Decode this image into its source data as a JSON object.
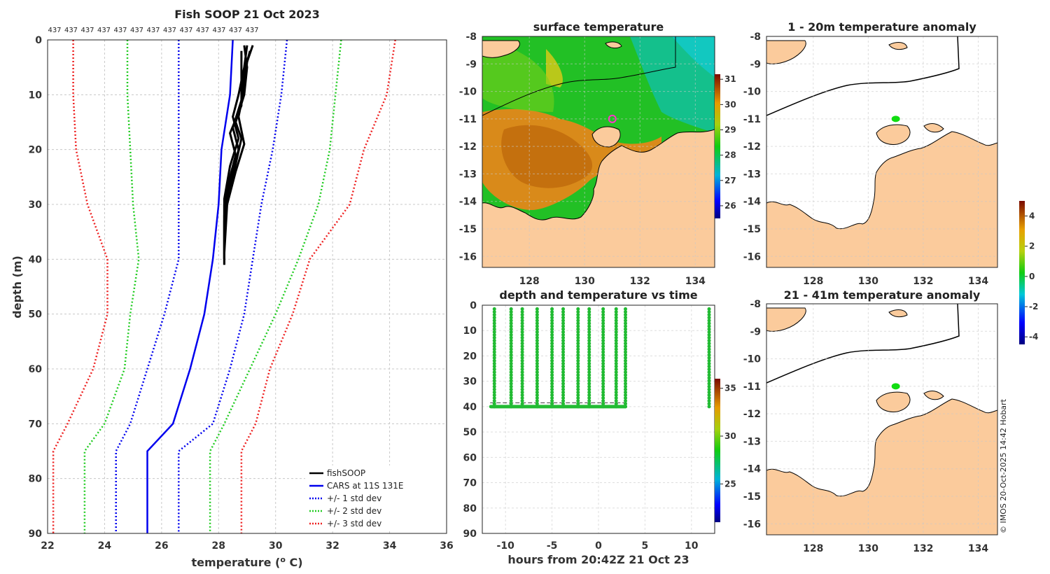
{
  "chart_data": [
    {
      "type": "line",
      "title": "Fish SOOP 21 Oct 2023",
      "xlabel": "temperature (",
      "xlabel_sup": "o",
      "xlabel_unit": " C)",
      "ylabel": "depth (m)",
      "xlim": [
        22,
        36
      ],
      "ylim": [
        0,
        90
      ],
      "y_reversed": true,
      "xticks": [
        22,
        24,
        26,
        28,
        30,
        32,
        34,
        36
      ],
      "yticks": [
        0,
        10,
        20,
        30,
        40,
        50,
        60,
        70,
        80,
        90
      ],
      "count_labels": [
        "437",
        "437",
        "437",
        "437",
        "437",
        "437",
        "437",
        "437",
        "437",
        "437",
        "437",
        "437",
        "437"
      ],
      "legend_position": "bottom-right",
      "series": [
        {
          "name": "fishSOOP",
          "color": "#000000",
          "style": "solid",
          "profiles": [
            [
              [
                28.9,
                1
              ],
              [
                29.0,
                5
              ],
              [
                28.9,
                10
              ],
              [
                28.6,
                15
              ],
              [
                28.8,
                18
              ],
              [
                28.5,
                25
              ],
              [
                28.2,
                30
              ],
              [
                28.2,
                41
              ]
            ],
            [
              [
                29.1,
                2
              ],
              [
                28.9,
                6
              ],
              [
                28.8,
                11
              ],
              [
                28.5,
                16
              ],
              [
                28.7,
                20
              ],
              [
                28.4,
                26
              ],
              [
                28.2,
                32
              ],
              [
                28.2,
                40
              ]
            ],
            [
              [
                29.2,
                1
              ],
              [
                29.0,
                4
              ],
              [
                28.9,
                9
              ],
              [
                28.7,
                14
              ],
              [
                28.9,
                19
              ],
              [
                28.6,
                24
              ],
              [
                28.3,
                30
              ],
              [
                28.2,
                39
              ]
            ],
            [
              [
                28.8,
                2
              ],
              [
                28.8,
                7
              ],
              [
                28.8,
                12
              ],
              [
                28.4,
                17
              ],
              [
                28.6,
                21
              ],
              [
                28.3,
                27
              ],
              [
                28.2,
                33
              ],
              [
                28.2,
                40
              ]
            ],
            [
              [
                29.0,
                1
              ],
              [
                28.9,
                5
              ],
              [
                28.7,
                10
              ],
              [
                28.5,
                14
              ],
              [
                28.7,
                18
              ],
              [
                28.4,
                23
              ],
              [
                28.2,
                29
              ],
              [
                28.2,
                41
              ]
            ]
          ]
        },
        {
          "name": "CARS at 11S 131E",
          "color": "#0000ee",
          "style": "solid",
          "x": [
            28.5,
            28.4,
            28.1,
            28.0,
            27.8,
            27.5,
            27.0,
            26.4,
            25.5,
            25.5
          ],
          "y": [
            0,
            10,
            20,
            30,
            40,
            50,
            60,
            70,
            75,
            90
          ]
        },
        {
          "name": "+/- 1 std dev",
          "color": "#0000ee",
          "style": "dotted",
          "pair": true,
          "lower": {
            "x": [
              26.6,
              26.6,
              26.6,
              26.6,
              26.6,
              26.1,
              25.5,
              24.9,
              24.4,
              24.4
            ],
            "y": [
              0,
              10,
              20,
              30,
              40,
              50,
              60,
              70,
              75,
              90
            ]
          },
          "upper": {
            "x": [
              30.4,
              30.2,
              29.9,
              29.5,
              29.2,
              28.9,
              28.4,
              27.8,
              26.6,
              26.6
            ],
            "y": [
              0,
              10,
              20,
              30,
              40,
              50,
              60,
              70,
              75,
              90
            ]
          }
        },
        {
          "name": "+/- 2 std dev",
          "color": "#22cc22",
          "style": "dotted",
          "pair": true,
          "lower": {
            "x": [
              24.8,
              24.8,
              24.9,
              25.0,
              25.2,
              24.9,
              24.7,
              24.0,
              23.3,
              23.3
            ],
            "y": [
              0,
              10,
              20,
              30,
              40,
              50,
              60,
              70,
              75,
              90
            ]
          },
          "upper": {
            "x": [
              32.3,
              32.1,
              31.9,
              31.5,
              30.8,
              30.0,
              29.1,
              28.2,
              27.7,
              27.7
            ],
            "y": [
              0,
              10,
              20,
              30,
              40,
              50,
              60,
              70,
              75,
              90
            ]
          }
        },
        {
          "name": "+/- 3 std dev",
          "color": "#ee2222",
          "style": "dotted",
          "pair": true,
          "lower": {
            "x": [
              22.9,
              22.9,
              23.0,
              23.4,
              24.1,
              24.1,
              23.6,
              22.7,
              22.2,
              22.2
            ],
            "y": [
              0,
              10,
              20,
              30,
              40,
              50,
              60,
              70,
              75,
              90
            ]
          },
          "upper": {
            "x": [
              34.2,
              33.9,
              33.1,
              32.6,
              31.2,
              30.6,
              29.8,
              29.3,
              28.8,
              28.8
            ],
            "y": [
              0,
              10,
              20,
              30,
              40,
              50,
              60,
              70,
              75,
              90
            ]
          }
        }
      ]
    },
    {
      "type": "heatmap",
      "title": "surface temperature",
      "xlim": [
        126.3,
        134.7
      ],
      "ylim": [
        -16.4,
        -8
      ],
      "xticks": [
        128,
        130,
        132,
        134
      ],
      "yticks": [
        -8,
        -9,
        -10,
        -11,
        -12,
        -13,
        -14,
        -15,
        -16
      ],
      "colorbar_ticks": [
        31,
        30,
        29,
        28,
        27,
        26
      ],
      "colorbar_range": [
        25.5,
        31.2
      ],
      "marker": {
        "lon": 131.0,
        "lat": -11.0,
        "color": "#ff33cc"
      }
    },
    {
      "type": "scatter",
      "title": "depth and temperature vs time",
      "xlabel": "hours from 20:42Z 21 Oct 23",
      "xlim": [
        -12.5,
        12.5
      ],
      "ylim": [
        0,
        90
      ],
      "y_reversed": true,
      "xticks": [
        -10,
        -5,
        0,
        5,
        10
      ],
      "xtick_labels": [
        "-10",
        "-5",
        "0",
        "5",
        "10"
      ],
      "yticks": [
        0,
        10,
        20,
        30,
        40,
        50,
        60,
        70,
        80,
        90
      ],
      "colorbar_ticks": [
        35,
        30,
        25
      ],
      "colorbar_range": [
        21,
        36
      ],
      "casts_hours": [
        -11.2,
        -9.4,
        -8.2,
        -6.6,
        -5.0,
        -3.8,
        -2.2,
        -1.0,
        0.5,
        1.9,
        2.9,
        11.9
      ],
      "bottom_depth": 40,
      "dashed_depth": 38.5
    },
    {
      "type": "heatmap",
      "title": "1 - 20m temperature anomaly",
      "xlim": [
        126.3,
        134.7
      ],
      "ylim": [
        -16.4,
        -8
      ],
      "xticks": [
        128,
        130,
        132,
        134
      ],
      "yticks": [
        -8,
        -9,
        -10,
        -11,
        -12,
        -13,
        -14,
        -15,
        -16
      ],
      "marker": {
        "lon": 131.0,
        "lat": -11.0,
        "color": "#11dd11"
      }
    },
    {
      "type": "heatmap",
      "title": "21 - 41m temperature anomaly",
      "xlim": [
        126.3,
        134.7
      ],
      "ylim": [
        -16.4,
        -8
      ],
      "xticks": [
        128,
        130,
        132,
        134
      ],
      "yticks": [
        -8,
        -9,
        -10,
        -11,
        -12,
        -13,
        -14,
        -15,
        -16
      ],
      "marker": {
        "lon": 131.0,
        "lat": -11.0,
        "color": "#11dd11"
      },
      "colorbar_ticks": [
        4,
        2,
        0,
        -2,
        -4
      ],
      "colorbar_range": [
        -4.5,
        5
      ]
    }
  ],
  "colors": {
    "land": "#fbcb9c",
    "coast": "#000000"
  },
  "credit": "© IMOS 20-Oct-2025 14:42 Hobart"
}
